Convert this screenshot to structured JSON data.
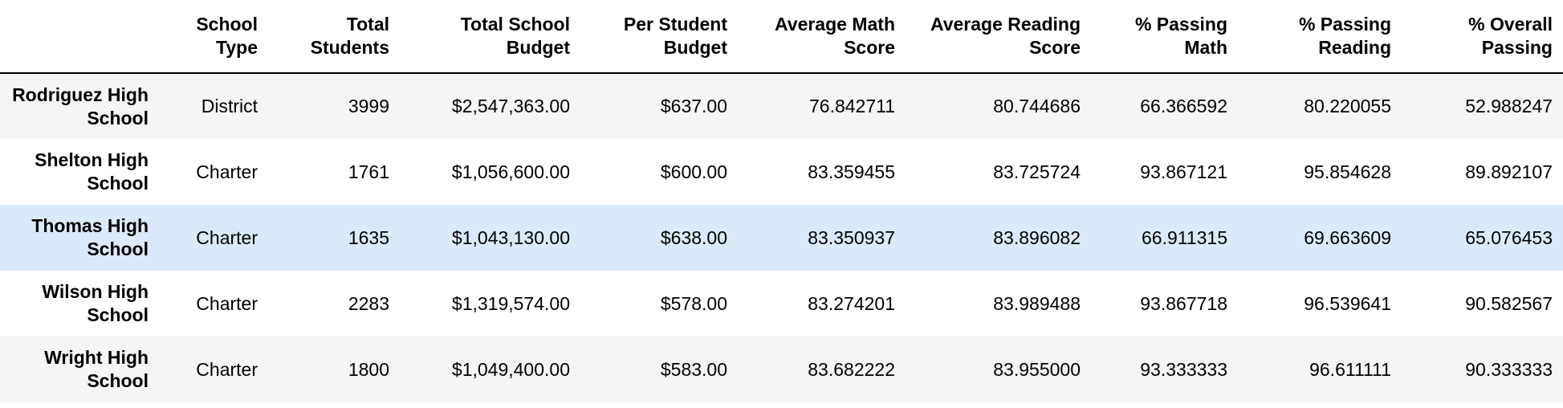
{
  "table": {
    "columns": [
      "",
      "School Type",
      "Total Students",
      "Total School Budget",
      "Per Student Budget",
      "Average Math Score",
      "Average Reading Score",
      "% Passing Math",
      "% Passing Reading",
      "% Overall Passing"
    ],
    "rows": [
      {
        "school": "Rodriguez High School",
        "type": "District",
        "total_students": "3999",
        "total_budget": "$2,547,363.00",
        "per_student_budget": "$637.00",
        "avg_math": "76.842711",
        "avg_reading": "80.744686",
        "pct_math": "66.366592",
        "pct_reading": "80.220055",
        "pct_overall": "52.988247"
      },
      {
        "school": "Shelton High School",
        "type": "Charter",
        "total_students": "1761",
        "total_budget": "$1,056,600.00",
        "per_student_budget": "$600.00",
        "avg_math": "83.359455",
        "avg_reading": "83.725724",
        "pct_math": "93.867121",
        "pct_reading": "95.854628",
        "pct_overall": "89.892107"
      },
      {
        "school": "Thomas High School",
        "type": "Charter",
        "total_students": "1635",
        "total_budget": "$1,043,130.00",
        "per_student_budget": "$638.00",
        "avg_math": "83.350937",
        "avg_reading": "83.896082",
        "pct_math": "66.911315",
        "pct_reading": "69.663609",
        "pct_overall": "65.076453"
      },
      {
        "school": "Wilson High School",
        "type": "Charter",
        "total_students": "2283",
        "total_budget": "$1,319,574.00",
        "per_student_budget": "$578.00",
        "avg_math": "83.274201",
        "avg_reading": "83.989488",
        "pct_math": "93.867718",
        "pct_reading": "96.539641",
        "pct_overall": "90.582567"
      },
      {
        "school": "Wright High School",
        "type": "Charter",
        "total_students": "1800",
        "total_budget": "$1,049,400.00",
        "per_student_budget": "$583.00",
        "avg_math": "83.682222",
        "avg_reading": "83.955000",
        "pct_math": "93.333333",
        "pct_reading": "96.611111",
        "pct_overall": "90.333333"
      }
    ],
    "hover_row_index": 2,
    "colors": {
      "even_row": "#f5f5f5",
      "odd_row": "#ffffff",
      "hover_row": "#dbeafa",
      "header_border": "#000000"
    }
  }
}
